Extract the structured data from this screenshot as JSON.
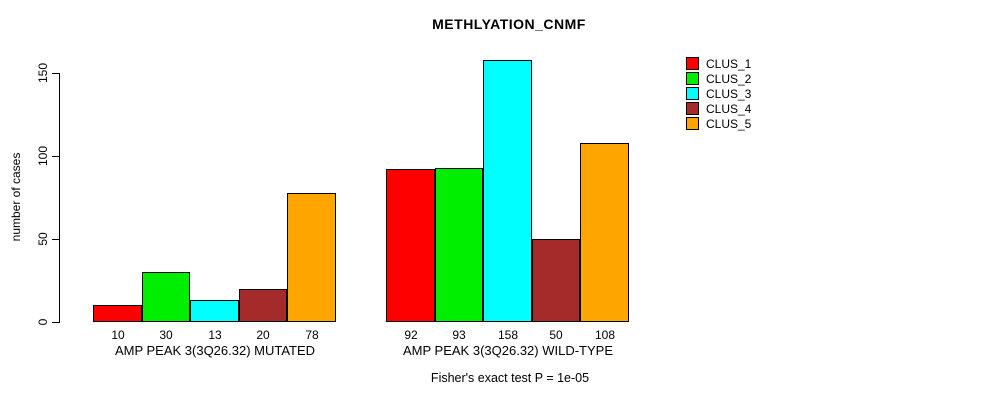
{
  "title": "METHLYATION_CNMF",
  "footer": "Fisher's exact test P = 1e-05",
  "chart_data": {
    "type": "bar",
    "title": "METHLYATION_CNMF",
    "xlabel": "",
    "ylabel": "number of cases",
    "ylim": [
      0,
      158
    ],
    "yticks": [
      0,
      50,
      100,
      150
    ],
    "grid": false,
    "legend_position": "right",
    "categories": [
      "AMP PEAK 3(3Q26.32) MUTATED",
      "AMP PEAK 3(3Q26.32) WILD-TYPE"
    ],
    "series": [
      {
        "name": "CLUS_1",
        "color": "#ff0000",
        "values": [
          10,
          92
        ]
      },
      {
        "name": "CLUS_2",
        "color": "#00ee00",
        "values": [
          30,
          93
        ]
      },
      {
        "name": "CLUS_3",
        "color": "#00ffff",
        "values": [
          13,
          158
        ]
      },
      {
        "name": "CLUS_4",
        "color": "#a52a2a",
        "values": [
          20,
          50
        ]
      },
      {
        "name": "CLUS_5",
        "color": "#ffa500",
        "values": [
          78,
          108
        ]
      }
    ],
    "bar_value_labels": [
      [
        10,
        30,
        13,
        20,
        78
      ],
      [
        92,
        93,
        158,
        50,
        108
      ]
    ],
    "annotation": "Fisher's exact test P = 1e-05",
    "colors": {
      "background": "#ffffff",
      "axis": "#000000",
      "bar_border": "#000000",
      "text": "#000000"
    }
  }
}
